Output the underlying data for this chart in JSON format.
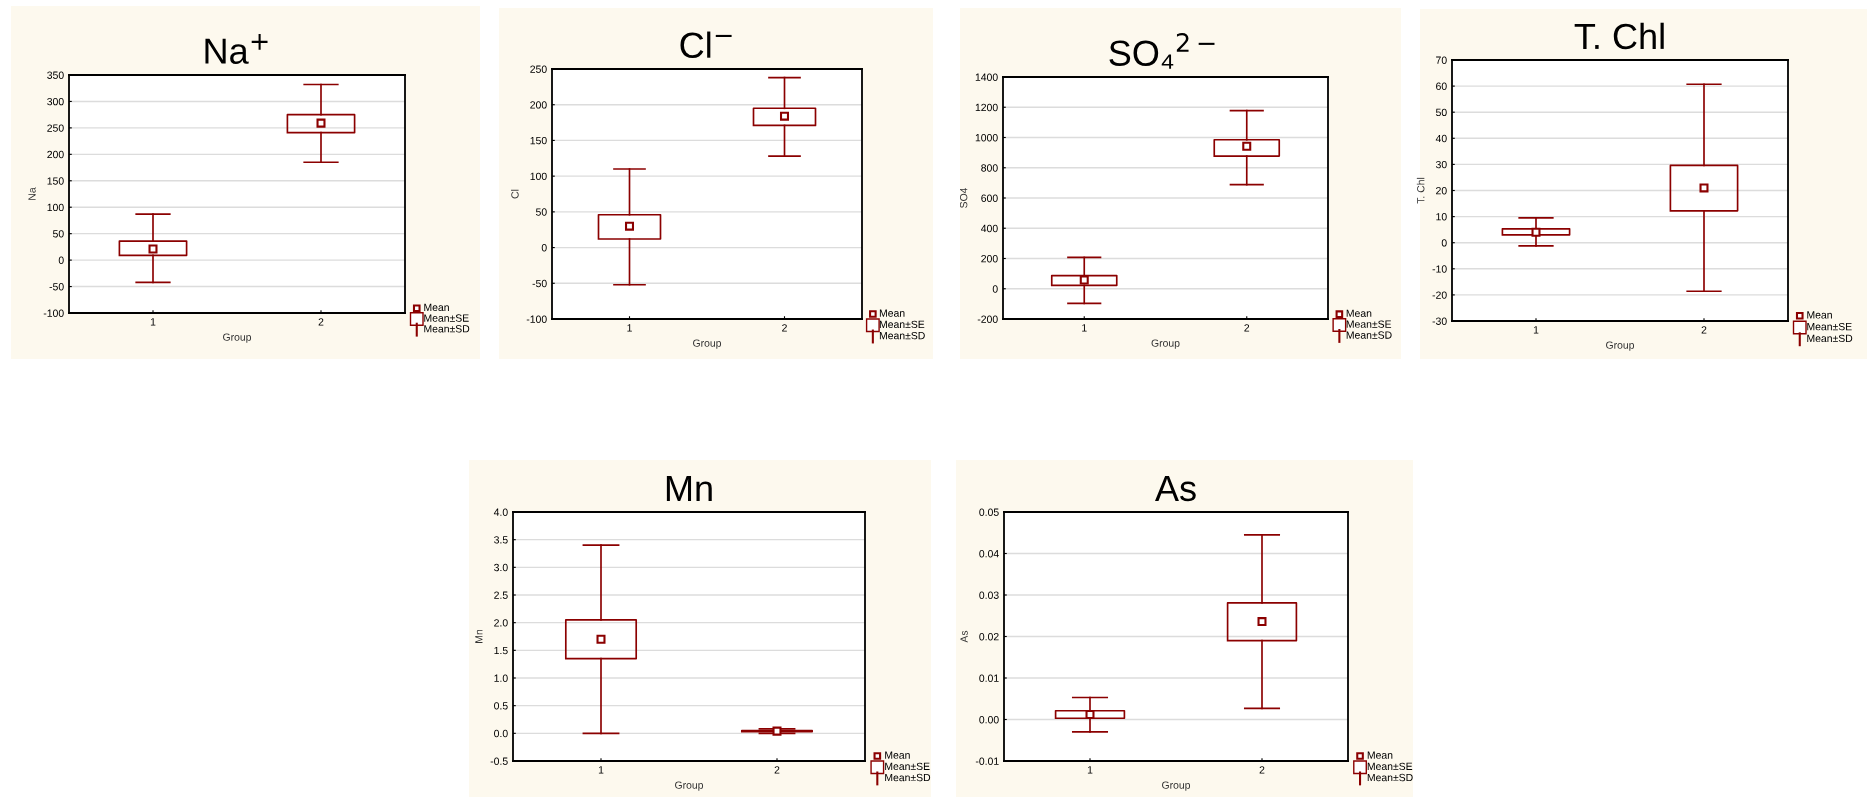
{
  "chart_data": [
    {
      "type": "box",
      "title": "Na$^{+}$",
      "xlabel": "Group",
      "ylabel": "Na",
      "categories": [
        "1",
        "2"
      ],
      "color": "#8b0000",
      "ylim": [
        -100,
        350
      ],
      "yticks": [
        -100,
        -50,
        0,
        50,
        100,
        150,
        200,
        250,
        300,
        350
      ],
      "grid": "y",
      "marker": "square",
      "annotations": [
        "Mean",
        "Mean±SE",
        "Mean±SD"
      ],
      "boxes": [
        {
          "low": -42,
          "q1": 9,
          "q3": 36,
          "high": 87,
          "mean": 21
        },
        {
          "low": 185,
          "q1": 241,
          "q3": 275,
          "high": 332,
          "mean": 259
        }
      ]
    },
    {
      "type": "box",
      "title": "Cl$^{−}$",
      "xlabel": "Group",
      "ylabel": "Cl",
      "categories": [
        "1",
        "2"
      ],
      "color": "#8b0000",
      "ylim": [
        -100,
        250
      ],
      "yticks": [
        -100,
        -50,
        0,
        50,
        100,
        150,
        200,
        250
      ],
      "grid": "y",
      "marker": "square",
      "annotations": [
        "Mean",
        "Mean±SE",
        "Mean±SD"
      ],
      "boxes": [
        {
          "low": -52,
          "q1": 12,
          "q3": 46,
          "high": 110,
          "mean": 30
        },
        {
          "low": 128,
          "q1": 171,
          "q3": 195,
          "high": 238,
          "mean": 184
        }
      ]
    },
    {
      "type": "box",
      "title": "SO₄$^{2−}$",
      "xlabel": "Group",
      "ylabel": "SO4",
      "categories": [
        "1",
        "2"
      ],
      "color": "#8b0000",
      "ylim": [
        -200,
        1400
      ],
      "yticks": [
        -200,
        0,
        200,
        400,
        600,
        800,
        1000,
        1200,
        1400
      ],
      "grid": "y",
      "marker": "square",
      "annotations": [
        "Mean",
        "Mean±SE",
        "Mean±SD"
      ],
      "boxes": [
        {
          "low": -97,
          "q1": 22,
          "q3": 87,
          "high": 207,
          "mean": 58
        },
        {
          "low": 688,
          "q1": 877,
          "q3": 985,
          "high": 1178,
          "mean": 942
        }
      ]
    },
    {
      "type": "box",
      "title": "T. Chl",
      "xlabel": "Group",
      "ylabel": "T. Chl",
      "categories": [
        "1",
        "2"
      ],
      "color": "#8b0000",
      "ylim": [
        -30,
        70
      ],
      "yticks": [
        -30,
        -20,
        -10,
        0,
        10,
        20,
        30,
        40,
        50,
        60,
        70
      ],
      "grid": "y",
      "marker": "square",
      "annotations": [
        "Mean",
        "Mean±SE",
        "Mean±SD"
      ],
      "boxes": [
        {
          "low": -1.2,
          "q1": 3,
          "q3": 5.3,
          "high": 9.5,
          "mean": 4
        },
        {
          "low": -18.6,
          "q1": 12.2,
          "q3": 29.6,
          "high": 60.7,
          "mean": 21
        }
      ]
    },
    {
      "type": "box",
      "title": "Mn",
      "xlabel": "Group",
      "ylabel": "Mn",
      "categories": [
        "1",
        "2"
      ],
      "color": "#8b0000",
      "ylim": [
        -0.5,
        4.0
      ],
      "yticks": [
        {
          "value": -0.5,
          "label": "-0.5"
        },
        {
          "value": 0,
          "label": "0.0"
        },
        {
          "value": 0.5,
          "label": "0.5"
        },
        {
          "value": 1,
          "label": "1.0"
        },
        {
          "value": 1.5,
          "label": "1.5"
        },
        {
          "value": 2,
          "label": "2.0"
        },
        {
          "value": 2.5,
          "label": "2.5"
        },
        {
          "value": 3,
          "label": "3.0"
        },
        {
          "value": 3.5,
          "label": "3.5"
        },
        {
          "value": 4,
          "label": "4.0"
        }
      ],
      "grid": "y",
      "marker": "square",
      "annotations": [
        "Mean",
        "Mean±SE",
        "Mean±SD"
      ],
      "boxes": [
        {
          "low": 0.0,
          "q1": 1.35,
          "q3": 2.05,
          "high": 3.4,
          "mean": 1.7
        },
        {
          "low": 0.0,
          "q1": 0.03,
          "q3": 0.05,
          "high": 0.08,
          "mean": 0.04
        }
      ]
    },
    {
      "type": "box",
      "title": "As",
      "xlabel": "Group",
      "ylabel": "As",
      "categories": [
        "1",
        "2"
      ],
      "color": "#8b0000",
      "ylim": [
        -0.01,
        0.05
      ],
      "yticks": [
        {
          "value": -0.01,
          "label": "-0.01"
        },
        {
          "value": 0,
          "label": "0.00"
        },
        {
          "value": 0.01,
          "label": "0.01"
        },
        {
          "value": 0.02,
          "label": "0.02"
        },
        {
          "value": 0.03,
          "label": "0.03"
        },
        {
          "value": 0.04,
          "label": "0.04"
        },
        {
          "value": 0.05,
          "label": "0.05"
        }
      ],
      "grid": "y",
      "marker": "square",
      "annotations": [
        "Mean",
        "Mean±SE",
        "Mean±SD"
      ],
      "boxes": [
        {
          "low": -0.003,
          "q1": 0.0003,
          "q3": 0.0021,
          "high": 0.0053,
          "mean": 0.0012
        },
        {
          "low": 0.0027,
          "q1": 0.019,
          "q3": 0.0281,
          "high": 0.0445,
          "mean": 0.0236
        }
      ]
    }
  ]
}
